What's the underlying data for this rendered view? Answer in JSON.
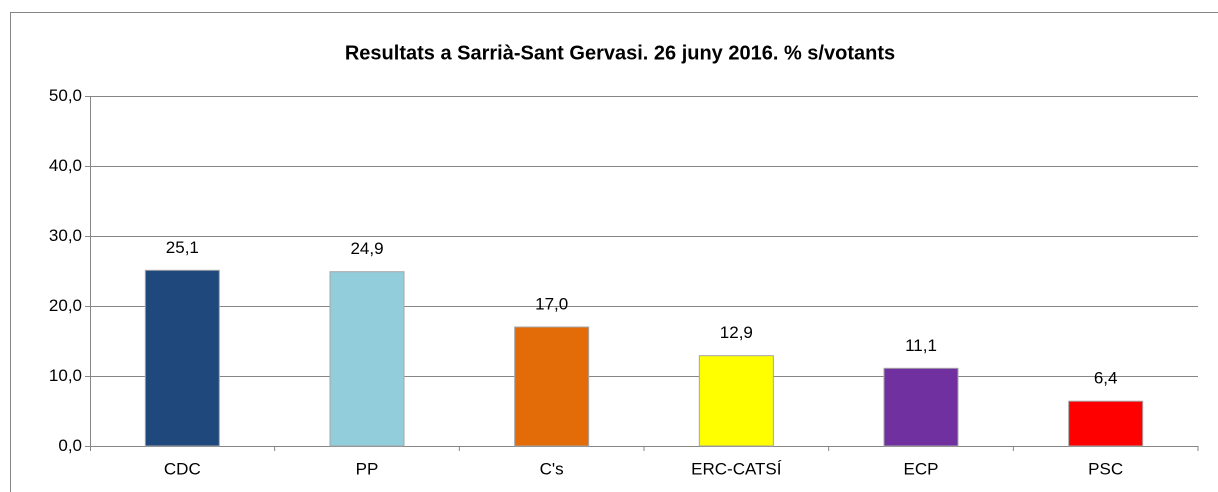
{
  "chart_data": {
    "type": "bar",
    "title": "Resultats a Sarrià-Sant Gervasi. 26 juny 2016. % s/votants",
    "categories": [
      "CDC",
      "PP",
      "C's",
      "ERC-CATSÍ",
      "ECP",
      "PSC"
    ],
    "values": [
      25.1,
      24.9,
      17.0,
      12.9,
      11.1,
      6.4
    ],
    "value_labels": [
      "25,1",
      "24,9",
      "17,0",
      "12,9",
      "11,1",
      "6,4"
    ],
    "colors": [
      "#1f497d",
      "#92cddc",
      "#e36c09",
      "#ffff00",
      "#7030a0",
      "#ff0000"
    ],
    "ylim": [
      0,
      50
    ],
    "yticks": [
      {
        "value": 0,
        "label": "0,0"
      },
      {
        "value": 10,
        "label": "10,0"
      },
      {
        "value": 20,
        "label": "20,0"
      },
      {
        "value": 30,
        "label": "30,0"
      },
      {
        "value": 40,
        "label": "40,0"
      },
      {
        "value": 50,
        "label": "50,0"
      }
    ],
    "grid": true
  }
}
